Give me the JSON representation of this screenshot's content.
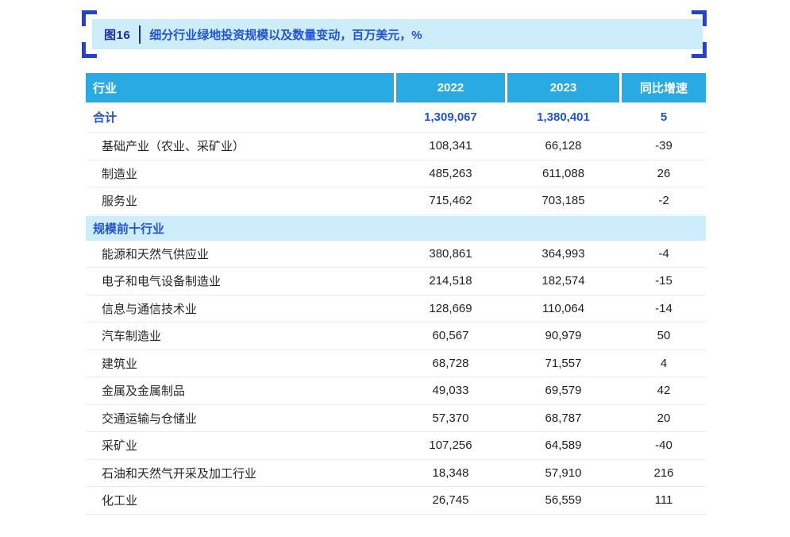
{
  "figure": {
    "label": "图16",
    "title": "细分行业绿地投资规模以及数量变动，百万美元，%"
  },
  "chart_data": {
    "type": "table",
    "title": "细分行业绿地投资规模以及数量变动，百万美元，%",
    "columns": [
      "行业",
      "2022",
      "2023",
      "同比增速"
    ],
    "total": {
      "name": "合计",
      "y2022": "1,309,067",
      "y2023": "1,380,401",
      "growth": "5"
    },
    "category_rows": [
      {
        "name": "基础产业（农业、采矿业）",
        "y2022": "108,341",
        "y2023": "66,128",
        "growth": "-39"
      },
      {
        "name": "制造业",
        "y2022": "485,263",
        "y2023": "611,088",
        "growth": "26"
      },
      {
        "name": "服务业",
        "y2022": "715,462",
        "y2023": "703,185",
        "growth": "-2"
      }
    ],
    "section_header": "规模前十行业",
    "top10_rows": [
      {
        "name": "能源和天然气供应业",
        "y2022": "380,861",
        "y2023": "364,993",
        "growth": "-4"
      },
      {
        "name": "电子和电气设备制造业",
        "y2022": "214,518",
        "y2023": "182,574",
        "growth": "-15"
      },
      {
        "name": "信息与通信技术业",
        "y2022": "128,669",
        "y2023": "110,064",
        "growth": "-14"
      },
      {
        "name": "汽车制造业",
        "y2022": "60,567",
        "y2023": "90,979",
        "growth": "50"
      },
      {
        "name": "建筑业",
        "y2022": "68,728",
        "y2023": "71,557",
        "growth": "4"
      },
      {
        "name": "金属及金属制品",
        "y2022": "49,033",
        "y2023": "69,579",
        "growth": "42"
      },
      {
        "name": "交通运输与仓储业",
        "y2022": "57,370",
        "y2023": "68,787",
        "growth": "20"
      },
      {
        "name": "采矿业",
        "y2022": "107,256",
        "y2023": "64,589",
        "growth": "-40"
      },
      {
        "name": "石油和天然气开采及加工行业",
        "y2022": "18,348",
        "y2023": "57,910",
        "growth": "216"
      },
      {
        "name": "化工业",
        "y2022": "26,745",
        "y2023": "56,559",
        "growth": "111"
      }
    ]
  },
  "colors": {
    "header_cyan": "#29aae3",
    "light_blue": "#cdedfb",
    "bracket_blue": "#2342d2",
    "accent_blue": "#2153d2",
    "fig_label_blue": "#1b2ea0",
    "text_dark": "#262626",
    "divider_gray": "#ebebee"
  }
}
